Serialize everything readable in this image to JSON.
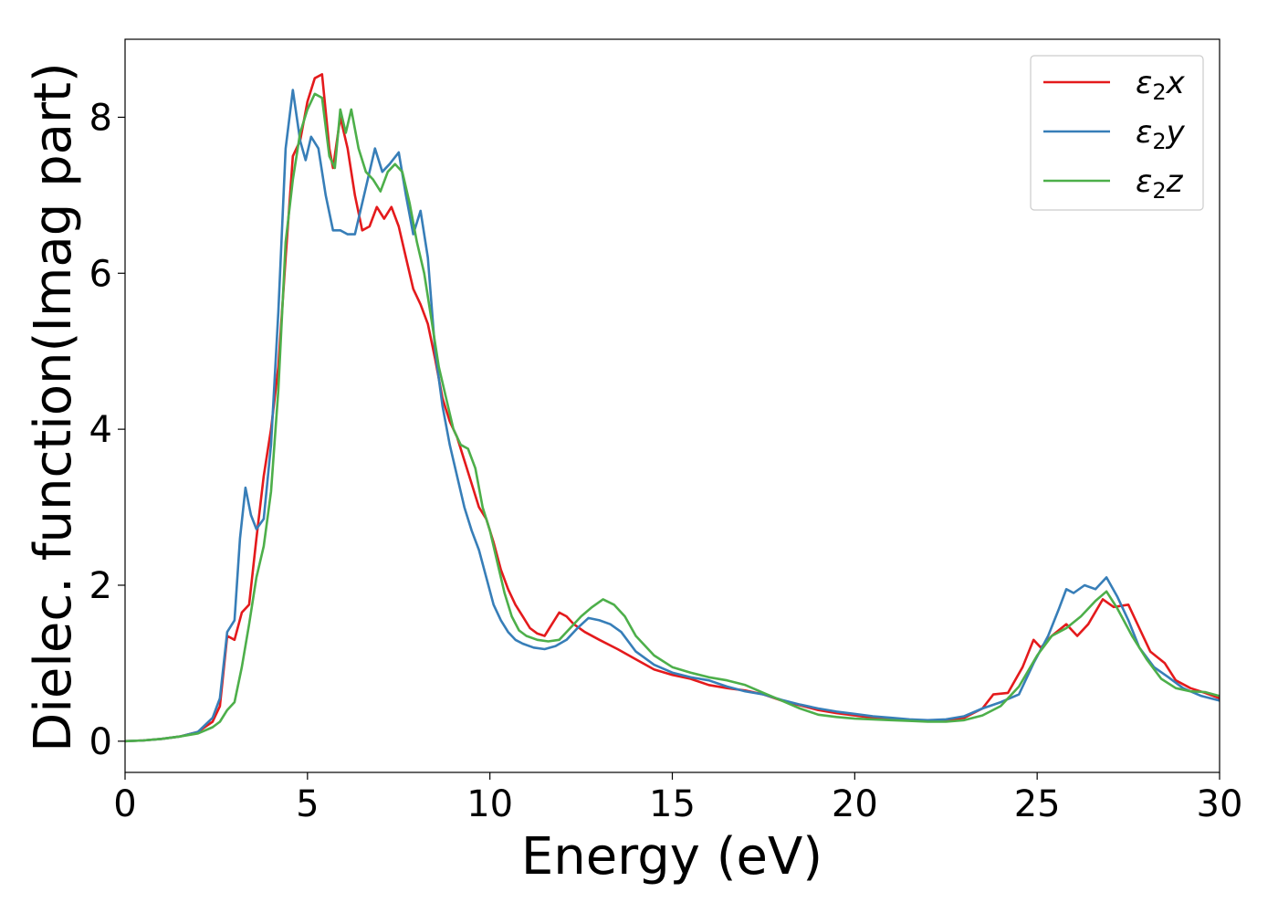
{
  "chart_data": {
    "type": "line",
    "title": "",
    "xlabel": "Energy (eV)",
    "ylabel": "Dielec. function(Imag part)",
    "xlim": [
      0,
      30
    ],
    "ylim": [
      -0.4,
      9.0
    ],
    "xticks": [
      0,
      5,
      10,
      15,
      20,
      25,
      30
    ],
    "yticks": [
      0,
      2,
      4,
      6,
      8
    ],
    "grid": false,
    "legend_position": "top-right",
    "series": [
      {
        "name": "ε₂x",
        "name_base": "ε",
        "name_sub": "2",
        "name_axis": "x",
        "color": "#e41a1c",
        "points": [
          [
            0,
            0
          ],
          [
            0.5,
            0.01
          ],
          [
            1,
            0.03
          ],
          [
            1.5,
            0.06
          ],
          [
            2,
            0.12
          ],
          [
            2.4,
            0.25
          ],
          [
            2.6,
            0.45
          ],
          [
            2.8,
            1.35
          ],
          [
            3.0,
            1.3
          ],
          [
            3.2,
            1.65
          ],
          [
            3.4,
            1.75
          ],
          [
            3.6,
            2.6
          ],
          [
            3.8,
            3.4
          ],
          [
            4.0,
            4.0
          ],
          [
            4.2,
            4.8
          ],
          [
            4.4,
            6.2
          ],
          [
            4.6,
            7.5
          ],
          [
            4.8,
            7.7
          ],
          [
            5.0,
            8.2
          ],
          [
            5.2,
            8.5
          ],
          [
            5.4,
            8.55
          ],
          [
            5.6,
            7.6
          ],
          [
            5.7,
            7.35
          ],
          [
            5.9,
            8.0
          ],
          [
            6.1,
            7.6
          ],
          [
            6.3,
            7.0
          ],
          [
            6.5,
            6.55
          ],
          [
            6.7,
            6.6
          ],
          [
            6.9,
            6.85
          ],
          [
            7.1,
            6.7
          ],
          [
            7.3,
            6.85
          ],
          [
            7.5,
            6.6
          ],
          [
            7.7,
            6.2
          ],
          [
            7.9,
            5.8
          ],
          [
            8.1,
            5.6
          ],
          [
            8.3,
            5.35
          ],
          [
            8.5,
            4.9
          ],
          [
            8.7,
            4.4
          ],
          [
            8.9,
            4.1
          ],
          [
            9.1,
            3.9
          ],
          [
            9.3,
            3.6
          ],
          [
            9.5,
            3.3
          ],
          [
            9.7,
            3.0
          ],
          [
            9.9,
            2.85
          ],
          [
            10.1,
            2.55
          ],
          [
            10.3,
            2.2
          ],
          [
            10.5,
            1.95
          ],
          [
            10.7,
            1.75
          ],
          [
            10.9,
            1.6
          ],
          [
            11.1,
            1.45
          ],
          [
            11.3,
            1.38
          ],
          [
            11.5,
            1.35
          ],
          [
            11.7,
            1.5
          ],
          [
            11.9,
            1.65
          ],
          [
            12.1,
            1.6
          ],
          [
            12.3,
            1.5
          ],
          [
            12.6,
            1.4
          ],
          [
            13.0,
            1.3
          ],
          [
            13.5,
            1.18
          ],
          [
            14.0,
            1.05
          ],
          [
            14.5,
            0.92
          ],
          [
            15.0,
            0.85
          ],
          [
            15.5,
            0.8
          ],
          [
            16.0,
            0.72
          ],
          [
            16.5,
            0.68
          ],
          [
            17.0,
            0.65
          ],
          [
            17.5,
            0.6
          ],
          [
            18.0,
            0.52
          ],
          [
            18.5,
            0.46
          ],
          [
            19.0,
            0.4
          ],
          [
            19.5,
            0.36
          ],
          [
            20.0,
            0.33
          ],
          [
            20.5,
            0.3
          ],
          [
            21.0,
            0.28
          ],
          [
            21.5,
            0.27
          ],
          [
            22.0,
            0.26
          ],
          [
            22.5,
            0.27
          ],
          [
            23.0,
            0.3
          ],
          [
            23.5,
            0.42
          ],
          [
            23.8,
            0.6
          ],
          [
            24.2,
            0.62
          ],
          [
            24.6,
            0.95
          ],
          [
            24.9,
            1.3
          ],
          [
            25.1,
            1.2
          ],
          [
            25.4,
            1.35
          ],
          [
            25.8,
            1.5
          ],
          [
            26.1,
            1.35
          ],
          [
            26.4,
            1.5
          ],
          [
            26.8,
            1.82
          ],
          [
            27.1,
            1.72
          ],
          [
            27.5,
            1.75
          ],
          [
            27.8,
            1.45
          ],
          [
            28.1,
            1.15
          ],
          [
            28.5,
            1.0
          ],
          [
            28.8,
            0.78
          ],
          [
            29.2,
            0.68
          ],
          [
            29.6,
            0.62
          ],
          [
            30.0,
            0.55
          ]
        ]
      },
      {
        "name": "ε₂y",
        "name_base": "ε",
        "name_sub": "2",
        "name_axis": "y",
        "color": "#377eb8",
        "points": [
          [
            0,
            0
          ],
          [
            0.5,
            0.01
          ],
          [
            1,
            0.03
          ],
          [
            1.5,
            0.06
          ],
          [
            2,
            0.12
          ],
          [
            2.4,
            0.3
          ],
          [
            2.6,
            0.55
          ],
          [
            2.8,
            1.4
          ],
          [
            3.0,
            1.55
          ],
          [
            3.15,
            2.6
          ],
          [
            3.3,
            3.25
          ],
          [
            3.45,
            2.9
          ],
          [
            3.6,
            2.72
          ],
          [
            3.8,
            2.85
          ],
          [
            4.0,
            3.8
          ],
          [
            4.2,
            5.5
          ],
          [
            4.4,
            7.6
          ],
          [
            4.6,
            8.35
          ],
          [
            4.8,
            7.7
          ],
          [
            4.95,
            7.45
          ],
          [
            5.1,
            7.75
          ],
          [
            5.3,
            7.6
          ],
          [
            5.5,
            7.0
          ],
          [
            5.7,
            6.55
          ],
          [
            5.9,
            6.55
          ],
          [
            6.1,
            6.5
          ],
          [
            6.3,
            6.5
          ],
          [
            6.5,
            6.9
          ],
          [
            6.7,
            7.3
          ],
          [
            6.85,
            7.6
          ],
          [
            7.05,
            7.3
          ],
          [
            7.25,
            7.4
          ],
          [
            7.5,
            7.55
          ],
          [
            7.7,
            7.0
          ],
          [
            7.9,
            6.5
          ],
          [
            8.1,
            6.8
          ],
          [
            8.3,
            6.2
          ],
          [
            8.5,
            5.0
          ],
          [
            8.7,
            4.3
          ],
          [
            8.9,
            3.8
          ],
          [
            9.1,
            3.4
          ],
          [
            9.3,
            3.0
          ],
          [
            9.5,
            2.7
          ],
          [
            9.7,
            2.45
          ],
          [
            9.9,
            2.1
          ],
          [
            10.1,
            1.75
          ],
          [
            10.3,
            1.55
          ],
          [
            10.5,
            1.4
          ],
          [
            10.7,
            1.3
          ],
          [
            10.9,
            1.25
          ],
          [
            11.2,
            1.2
          ],
          [
            11.5,
            1.18
          ],
          [
            11.8,
            1.22
          ],
          [
            12.1,
            1.3
          ],
          [
            12.4,
            1.45
          ],
          [
            12.7,
            1.58
          ],
          [
            13.0,
            1.55
          ],
          [
            13.3,
            1.5
          ],
          [
            13.6,
            1.4
          ],
          [
            14.0,
            1.15
          ],
          [
            14.5,
            0.98
          ],
          [
            15.0,
            0.88
          ],
          [
            15.5,
            0.82
          ],
          [
            16.0,
            0.78
          ],
          [
            16.5,
            0.7
          ],
          [
            17.0,
            0.64
          ],
          [
            17.5,
            0.6
          ],
          [
            18.0,
            0.53
          ],
          [
            18.5,
            0.47
          ],
          [
            19.0,
            0.42
          ],
          [
            19.5,
            0.38
          ],
          [
            20.0,
            0.35
          ],
          [
            20.5,
            0.32
          ],
          [
            21.0,
            0.3
          ],
          [
            21.5,
            0.28
          ],
          [
            22.0,
            0.27
          ],
          [
            22.5,
            0.28
          ],
          [
            23.0,
            0.32
          ],
          [
            23.5,
            0.42
          ],
          [
            24.0,
            0.5
          ],
          [
            24.5,
            0.6
          ],
          [
            24.9,
            1.0
          ],
          [
            25.3,
            1.35
          ],
          [
            25.6,
            1.7
          ],
          [
            25.8,
            1.95
          ],
          [
            26.0,
            1.9
          ],
          [
            26.3,
            2.0
          ],
          [
            26.6,
            1.95
          ],
          [
            26.9,
            2.1
          ],
          [
            27.2,
            1.85
          ],
          [
            27.5,
            1.55
          ],
          [
            27.8,
            1.2
          ],
          [
            28.2,
            0.95
          ],
          [
            28.6,
            0.82
          ],
          [
            29.0,
            0.68
          ],
          [
            29.5,
            0.58
          ],
          [
            30.0,
            0.52
          ]
        ]
      },
      {
        "name": "ε₂z",
        "name_base": "ε",
        "name_sub": "2",
        "name_axis": "z",
        "color": "#4daf4a",
        "points": [
          [
            0,
            0
          ],
          [
            0.5,
            0.01
          ],
          [
            1,
            0.03
          ],
          [
            1.5,
            0.06
          ],
          [
            2,
            0.1
          ],
          [
            2.4,
            0.18
          ],
          [
            2.6,
            0.25
          ],
          [
            2.8,
            0.4
          ],
          [
            3.0,
            0.5
          ],
          [
            3.2,
            0.95
          ],
          [
            3.4,
            1.5
          ],
          [
            3.6,
            2.1
          ],
          [
            3.8,
            2.5
          ],
          [
            4.0,
            3.2
          ],
          [
            4.2,
            4.5
          ],
          [
            4.4,
            6.4
          ],
          [
            4.6,
            7.2
          ],
          [
            4.8,
            7.8
          ],
          [
            5.0,
            8.1
          ],
          [
            5.2,
            8.3
          ],
          [
            5.4,
            8.25
          ],
          [
            5.6,
            7.5
          ],
          [
            5.75,
            7.35
          ],
          [
            5.9,
            8.1
          ],
          [
            6.05,
            7.8
          ],
          [
            6.2,
            8.1
          ],
          [
            6.4,
            7.6
          ],
          [
            6.6,
            7.3
          ],
          [
            6.8,
            7.2
          ],
          [
            7.0,
            7.05
          ],
          [
            7.2,
            7.3
          ],
          [
            7.4,
            7.4
          ],
          [
            7.6,
            7.3
          ],
          [
            7.8,
            6.9
          ],
          [
            8.0,
            6.4
          ],
          [
            8.2,
            6.0
          ],
          [
            8.4,
            5.4
          ],
          [
            8.6,
            4.8
          ],
          [
            8.8,
            4.4
          ],
          [
            9.0,
            4.0
          ],
          [
            9.2,
            3.8
          ],
          [
            9.4,
            3.75
          ],
          [
            9.6,
            3.5
          ],
          [
            9.8,
            3.0
          ],
          [
            10.0,
            2.7
          ],
          [
            10.2,
            2.3
          ],
          [
            10.4,
            1.9
          ],
          [
            10.6,
            1.6
          ],
          [
            10.8,
            1.42
          ],
          [
            11.0,
            1.35
          ],
          [
            11.3,
            1.3
          ],
          [
            11.6,
            1.28
          ],
          [
            11.9,
            1.3
          ],
          [
            12.2,
            1.45
          ],
          [
            12.5,
            1.6
          ],
          [
            12.8,
            1.72
          ],
          [
            13.1,
            1.82
          ],
          [
            13.4,
            1.75
          ],
          [
            13.7,
            1.6
          ],
          [
            14.0,
            1.35
          ],
          [
            14.5,
            1.1
          ],
          [
            15.0,
            0.95
          ],
          [
            15.5,
            0.88
          ],
          [
            16.0,
            0.82
          ],
          [
            16.5,
            0.78
          ],
          [
            17.0,
            0.72
          ],
          [
            17.5,
            0.62
          ],
          [
            18.0,
            0.52
          ],
          [
            18.5,
            0.42
          ],
          [
            19.0,
            0.34
          ],
          [
            19.5,
            0.31
          ],
          [
            20.0,
            0.29
          ],
          [
            20.5,
            0.28
          ],
          [
            21.0,
            0.27
          ],
          [
            21.5,
            0.26
          ],
          [
            22.0,
            0.25
          ],
          [
            22.5,
            0.25
          ],
          [
            23.0,
            0.27
          ],
          [
            23.5,
            0.33
          ],
          [
            24.0,
            0.45
          ],
          [
            24.5,
            0.7
          ],
          [
            25.0,
            1.1
          ],
          [
            25.4,
            1.35
          ],
          [
            25.8,
            1.45
          ],
          [
            26.2,
            1.6
          ],
          [
            26.6,
            1.8
          ],
          [
            26.9,
            1.92
          ],
          [
            27.2,
            1.7
          ],
          [
            27.6,
            1.35
          ],
          [
            28.0,
            1.05
          ],
          [
            28.4,
            0.8
          ],
          [
            28.8,
            0.68
          ],
          [
            29.2,
            0.64
          ],
          [
            29.6,
            0.63
          ],
          [
            30.0,
            0.58
          ]
        ]
      }
    ]
  }
}
